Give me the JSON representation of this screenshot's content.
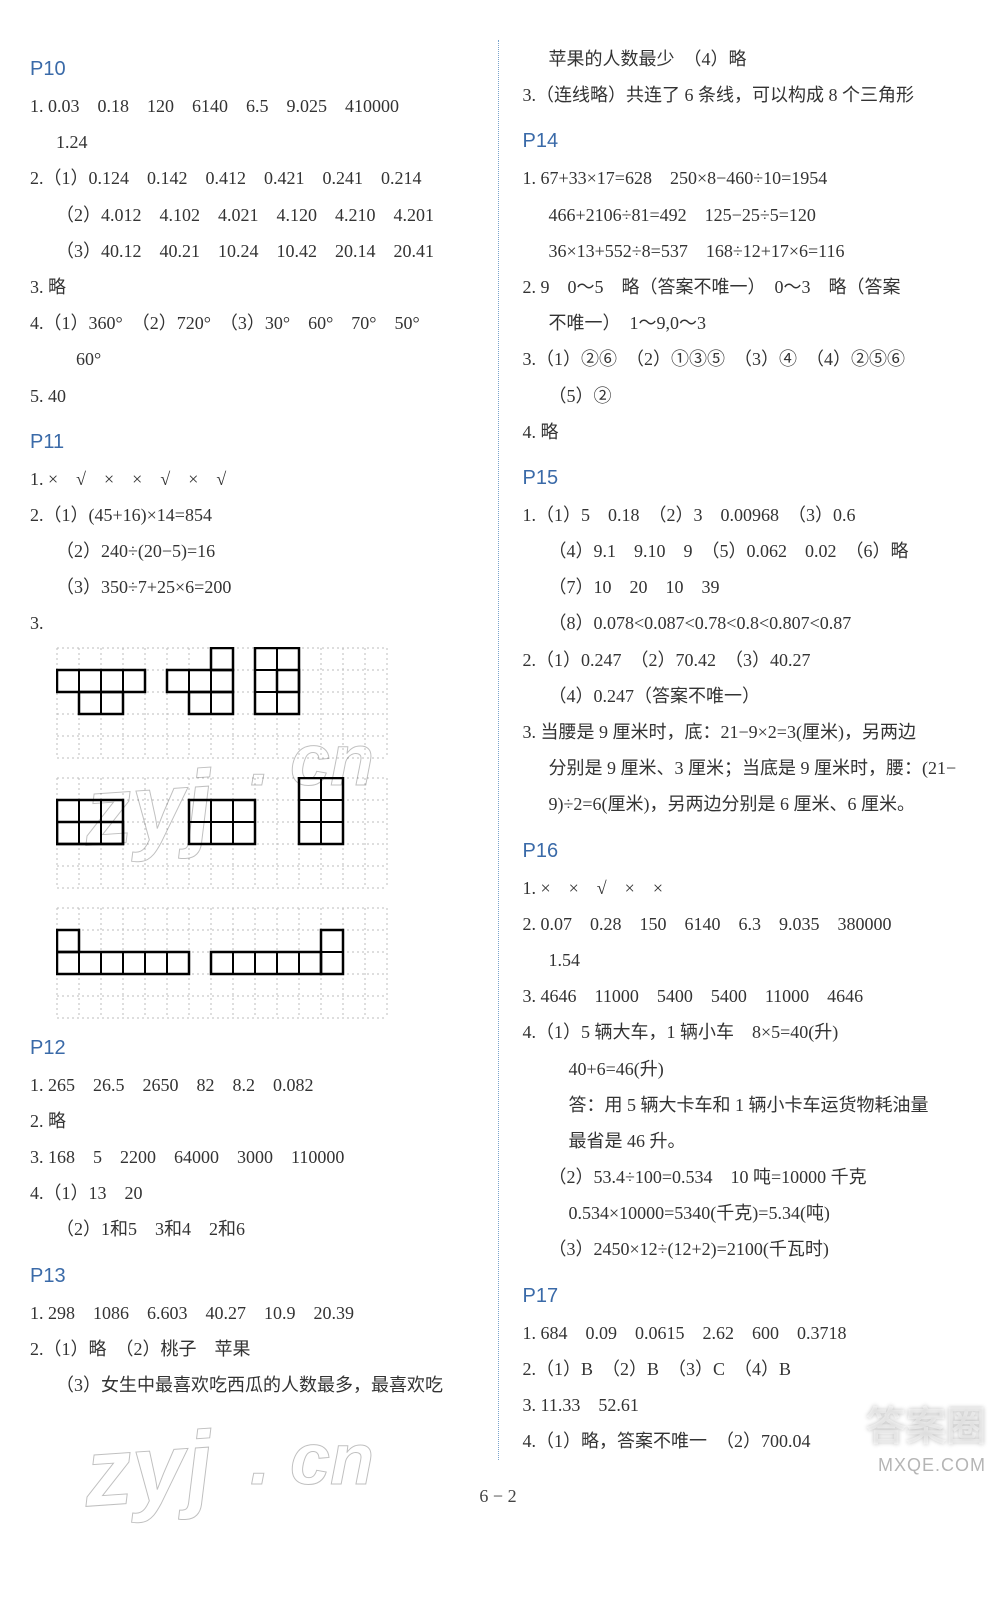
{
  "left": {
    "p10": {
      "head": "P10",
      "l1": "1. 0.03　0.18　120　6140　6.5　9.025　410000",
      "l1b": "1.24",
      "l2a": "2.（1）0.124　0.142　0.412　0.421　0.241　0.214",
      "l2b": "（2）4.012　4.102　4.021　4.120　4.210　4.201",
      "l2c": "（3）40.12　40.21　10.24　10.42　20.14　20.41",
      "l3": "3. 略",
      "l4a": "4.（1）360°　（2）720°　（3）30°　60°　70°　50°",
      "l4b": "60°",
      "l5": "5. 40"
    },
    "p11": {
      "head": "P11",
      "l1": "1. ×　√　×　×　√　×　√",
      "l2a": "2.（1）(45+16)×14=854",
      "l2b": "（2）240÷(20−5)=16",
      "l2c": "（3）350÷7+25×6=200",
      "l3": "3."
    },
    "p12": {
      "head": "P12",
      "l1": "1. 265　26.5　2650　82　8.2　0.082",
      "l2": "2. 略",
      "l3": "3. 168　5　2200　64000　3000　110000",
      "l4a": "4.（1）13　20",
      "l4b": "（2）1和5　3和4　2和6"
    },
    "p13": {
      "head": "P13",
      "l1": "1. 298　1086　6.603　40.27　10.9　20.39",
      "l2a": "2.（1）略　（2）桃子　苹果",
      "l2b": "（3）女生中最喜欢吃西瓜的人数最多，最喜欢吃"
    }
  },
  "right": {
    "p13c": {
      "l1": "苹果的人数最少　（4）略",
      "l2": "3.（连线略）共连了 6 条线，可以构成 8 个三角形"
    },
    "p14": {
      "head": "P14",
      "l1a": "1. 67+33×17=628　250×8−460÷10=1954",
      "l1b": "466+2106÷81=492　125−25÷5=120",
      "l1c": "36×13+552÷8=537　168÷12+17×6=116",
      "l2a": "2. 9　0～5　略（答案不唯一）　0～3　略（答案",
      "l2b": "不唯一）　1～9,0～3",
      "l3a": "3.（1）②⑥　（2）①③⑤　（3）④　（4）②⑤⑥",
      "l3b": "（5）②",
      "l4": "4. 略"
    },
    "p15": {
      "head": "P15",
      "l1a": "1.（1）5　0.18　（2）3　0.00968　（3）0.6",
      "l1b": "（4）9.1　9.10　9　（5）0.062　0.02　（6）略",
      "l1c": "（7）10　20　10　39",
      "l1d": "（8）0.078<0.087<0.78<0.8<0.807<0.87",
      "l2a": "2.（1）0.247　（2）70.42　（3）40.27",
      "l2b": "（4）0.247（答案不唯一）",
      "l3a": "3. 当腰是 9 厘米时，底：21−9×2=3(厘米)，另两边",
      "l3b": "分别是 9 厘米、3 厘米；当底是 9 厘米时，腰：(21−",
      "l3c": "9)÷2=6(厘米)，另两边分别是 6 厘米、6 厘米。"
    },
    "p16": {
      "head": "P16",
      "l1": "1. ×　×　√　×　×",
      "l2a": "2. 0.07　0.28　150　6140　6.3　9.035　380000",
      "l2b": "1.54",
      "l3": "3. 4646　11000　5400　5400　11000　4646",
      "l4a": "4.（1）5 辆大车，1 辆小车　8×5=40(升)",
      "l4b": "40+6=46(升)",
      "l4c": "答：用 5 辆大卡车和 1 辆小卡车运货物耗油量",
      "l4d": "最省是 46 升。",
      "l4e": "（2）53.4÷100=0.534　10 吨=10000 千克",
      "l4f": "0.534×10000=5340(千克)=5.34(吨)",
      "l4g": "（3）2450×12÷(12+2)=2100(千瓦时)"
    },
    "p17": {
      "head": "P17",
      "l1": "1. 684　0.09　0.0615　2.62　600　0.3718",
      "l2": "2.（1）B　（2）B　（3）C　（4）B",
      "l3": "3. 11.33　52.61",
      "l4": "4.（1）略，答案不唯一　（2）700.04"
    }
  },
  "grids": {
    "cell": 22,
    "stroke_grid": "#bdbdbd",
    "stroke_shape": "#000000",
    "g1": {
      "cols": 15,
      "rows": 5,
      "shapes": [
        {
          "rects": [
            [
              0,
              1,
              4,
              2
            ],
            [
              1,
              2,
              3,
              3
            ]
          ]
        },
        {
          "rects": [
            [
              5,
              1,
              8,
              2
            ],
            [
              6,
              2,
              8,
              3
            ],
            [
              7,
              0,
              8,
              1
            ]
          ]
        },
        {
          "rects": [
            [
              9,
              0,
              11,
              3
            ],
            [
              10,
              1,
              11,
              2
            ]
          ]
        }
      ],
      "inner_lines": [
        [
          1,
          1,
          1,
          3
        ],
        [
          2,
          1,
          2,
          3
        ],
        [
          3,
          1,
          3,
          3
        ],
        [
          0,
          2,
          4,
          2
        ],
        [
          6,
          1,
          6,
          3
        ],
        [
          7,
          0,
          7,
          3
        ],
        [
          5,
          2,
          8,
          2
        ],
        [
          10,
          0,
          10,
          3
        ],
        [
          9,
          1,
          11,
          1
        ],
        [
          9,
          2,
          11,
          2
        ]
      ]
    },
    "g2": {
      "cols": 15,
      "rows": 5,
      "shapes": [
        {
          "rects": [
            [
              0,
              1,
              3,
              3
            ],
            [
              0,
              2,
              3,
              3
            ]
          ]
        },
        {
          "rects": [
            [
              6,
              1,
              9,
              3
            ]
          ]
        },
        {
          "rects": [
            [
              11,
              0,
              13,
              3
            ]
          ]
        }
      ],
      "inner_lines": [
        [
          1,
          1,
          1,
          3
        ],
        [
          2,
          1,
          2,
          3
        ],
        [
          0,
          2,
          3,
          2
        ],
        [
          7,
          1,
          7,
          3
        ],
        [
          8,
          1,
          8,
          3
        ],
        [
          6,
          2,
          9,
          2
        ],
        [
          12,
          0,
          12,
          3
        ],
        [
          11,
          1,
          13,
          1
        ],
        [
          11,
          2,
          13,
          2
        ]
      ]
    },
    "g3": {
      "cols": 15,
      "rows": 5,
      "shapes": [
        {
          "rects": [
            [
              0,
              2,
              6,
              3
            ],
            [
              0,
              1,
              1,
              2
            ]
          ]
        },
        {
          "rects": [
            [
              7,
              2,
              12,
              3
            ],
            [
              12,
              1,
              13,
              3
            ]
          ]
        }
      ],
      "inner_lines": [
        [
          1,
          2,
          1,
          3
        ],
        [
          2,
          2,
          2,
          3
        ],
        [
          3,
          2,
          3,
          3
        ],
        [
          4,
          2,
          4,
          3
        ],
        [
          5,
          2,
          5,
          3
        ],
        [
          0,
          2,
          1,
          2
        ],
        [
          8,
          2,
          8,
          3
        ],
        [
          9,
          2,
          9,
          3
        ],
        [
          10,
          2,
          10,
          3
        ],
        [
          11,
          2,
          11,
          3
        ],
        [
          12,
          1,
          12,
          3
        ],
        [
          12,
          2,
          13,
          2
        ]
      ]
    }
  },
  "footer": "6 − 2",
  "watermarks": {
    "a": "zyj",
    "b": ". cn"
  },
  "corner1": "答案圈",
  "corner2": "MXQE.COM"
}
